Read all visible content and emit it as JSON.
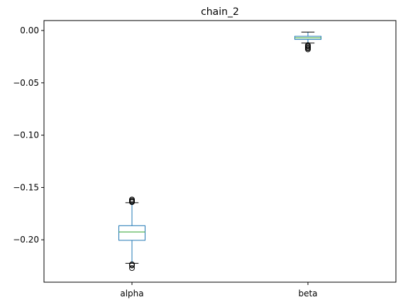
{
  "chart_data": {
    "type": "box",
    "title": "chain_2",
    "xlabel": "",
    "ylabel": "",
    "ylim": [
      -0.2405,
      0.0095
    ],
    "yticks": [
      0.0,
      -0.05,
      -0.1,
      -0.15,
      -0.2
    ],
    "ytick_labels": [
      "0.00",
      "−0.05",
      "−0.10",
      "−0.15",
      "−0.20"
    ],
    "categories": [
      "alpha",
      "beta"
    ],
    "grid": false,
    "colors": {
      "box": "#1f77b4",
      "median": "#2ca02c",
      "whisker": "#000000",
      "flier": "#000000"
    },
    "boxes": [
      {
        "name": "alpha",
        "whisker_low": -0.2225,
        "q1": -0.2005,
        "median": -0.1925,
        "q3": -0.1865,
        "whisker_high": -0.1645,
        "fliers": [
          -0.1615,
          -0.1625,
          -0.1635,
          -0.164,
          -0.2235,
          -0.2245,
          -0.227
        ]
      },
      {
        "name": "beta",
        "whisker_low": -0.012,
        "q1": -0.0085,
        "median": -0.007,
        "q3": -0.0055,
        "whisker_high": -0.0015,
        "fliers": [
          -0.014,
          -0.015,
          -0.016,
          -0.017,
          -0.018
        ]
      }
    ]
  }
}
